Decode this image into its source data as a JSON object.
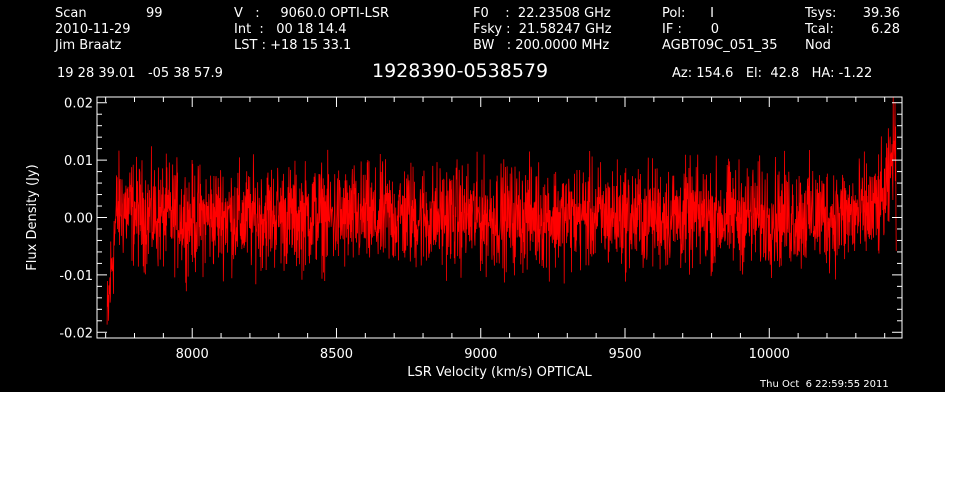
{
  "header": {
    "col1": {
      "scan_label": "Scan",
      "scan_value": "99",
      "date": "2010-11-29",
      "observer": "Jim Braatz"
    },
    "col2": {
      "v_line": "V   :     9060.0 OPTI-LSR",
      "int_line": "Int  :   00 18 14.4",
      "lst_line": "LST : +18 15 33.1"
    },
    "col3": {
      "f0_line": "F0    :  22.23508 GHz",
      "fsky_line": "Fsky :  21.58247 GHz",
      "bw_line": "BW   : 200.0000 MHz"
    },
    "col4": {
      "pol_line": "Pol:      I",
      "if_line": "IF :       0",
      "session": "AGBT09C_051_35"
    },
    "col5": {
      "tsys_label": "Tsys:",
      "tsys_value": "39.36",
      "tcal_label": "Tcal:",
      "tcal_value": "6.28",
      "mode": "Nod"
    },
    "coords": "19 28 39.01   -05 38 57.9",
    "source_name": "1928390-0538579",
    "pointing": "Az: 154.6   El:  42.8   HA: -1.22"
  },
  "timestamp": "Thu Oct  6 22:59:55 2011",
  "colors": {
    "background": "#000000",
    "axes": "#ffffff",
    "trace": "#ff0000"
  },
  "chart_data": {
    "type": "line",
    "title": "1928390-0538579",
    "xlabel": "LSR Velocity (km/s) OPTICAL",
    "ylabel": "Flux Density (Jy)",
    "xlim": [
      7670,
      10460
    ],
    "ylim": [
      -0.021,
      0.021
    ],
    "x_ticks": [
      8000,
      8500,
      9000,
      9500,
      10000
    ],
    "x_tick_labels": [
      "8000",
      "8500",
      "9000",
      "9500",
      "10000"
    ],
    "y_ticks": [
      -0.02,
      -0.01,
      0.0,
      0.01,
      0.02
    ],
    "y_tick_labels": [
      "-0.02",
      "-0.01",
      "0.00",
      "0.01",
      "0.02"
    ],
    "grid": false,
    "legend": "none",
    "series": [
      {
        "color": "#ff0000",
        "x": [
          7705,
          7715,
          7725,
          7740,
          7760,
          7790,
          7830,
          7880,
          7940,
          8000,
          8060,
          8120,
          8180,
          8240,
          8300,
          8360,
          8420,
          8480,
          8540,
          8600,
          8640,
          8660,
          8700,
          8760,
          8820,
          8880,
          8940,
          9000,
          9060,
          9120,
          9180,
          9240,
          9300,
          9360,
          9420,
          9480,
          9540,
          9600,
          9660,
          9720,
          9780,
          9840,
          9900,
          9960,
          10020,
          10080,
          10140,
          10200,
          10260,
          10320,
          10360,
          10390,
          10410,
          10420,
          10430,
          10435,
          10440
        ],
        "y": [
          -0.0195,
          -0.012,
          -0.006,
          0.0015,
          0.0018,
          0.001,
          0.0005,
          0.0002,
          0.0004,
          -0.0003,
          0.0,
          0.0006,
          -0.0004,
          0.0003,
          0.0005,
          -0.0002,
          0.0004,
          0.0001,
          -0.0003,
          0.0002,
          -0.001,
          0.0003,
          0.0001,
          0.0004,
          -0.0002,
          0.0003,
          0.0002,
          0.0,
          0.0003,
          -0.0001,
          0.0004,
          0.0002,
          -0.0002,
          0.0005,
          0.0001,
          0.0003,
          -0.0001,
          0.0004,
          0.0002,
          0.0,
          0.0003,
          0.0001,
          0.0004,
          0.0002,
          0.0003,
          0.0001,
          0.0004,
          0.0003,
          0.0002,
          0.0005,
          0.0012,
          0.0025,
          0.0045,
          0.0075,
          0.014,
          0.012,
          0.004
        ],
        "noise_rms": 0.0045
      }
    ]
  }
}
